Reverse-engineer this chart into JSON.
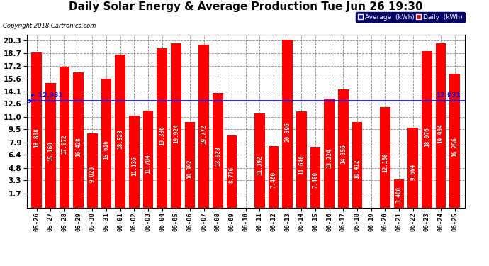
{
  "title": "Daily Solar Energy & Average Production Tue Jun 26 19:30",
  "copyright": "Copyright 2018 Cartronics.com",
  "categories": [
    "05-26",
    "05-27",
    "05-28",
    "05-29",
    "05-30",
    "05-31",
    "06-01",
    "06-02",
    "06-03",
    "06-04",
    "06-05",
    "06-06",
    "06-07",
    "06-08",
    "06-09",
    "06-10",
    "06-11",
    "06-12",
    "06-13",
    "06-14",
    "06-15",
    "06-16",
    "06-17",
    "06-18",
    "06-19",
    "06-20",
    "06-21",
    "06-22",
    "06-23",
    "06-24",
    "06-25"
  ],
  "values": [
    18.808,
    15.16,
    17.072,
    16.428,
    9.028,
    15.616,
    18.528,
    11.136,
    11.784,
    19.336,
    19.924,
    10.392,
    19.772,
    13.928,
    8.776,
    0.0,
    11.392,
    7.46,
    20.396,
    11.64,
    7.4,
    13.224,
    14.356,
    10.412,
    0.0,
    12.168,
    3.4,
    9.664,
    18.976,
    19.904,
    16.256
  ],
  "average": 12.931,
  "bar_color": "#ff0000",
  "average_line_color": "#0000ff",
  "yticks": [
    1.7,
    3.3,
    4.8,
    6.4,
    7.9,
    9.5,
    11.0,
    12.6,
    14.1,
    15.6,
    17.2,
    18.7,
    20.3
  ],
  "ymin": 0,
  "ymax": 21.0,
  "bg_color": "#ffffff",
  "grid_color": "#888888",
  "title_fontsize": 11,
  "bar_label_fontsize": 5.5,
  "legend_avg_color": "#000099",
  "legend_daily_color": "#cc0000",
  "legend_avg_label": "Average  (kWh)",
  "legend_daily_label": "Daily  (kWh)"
}
